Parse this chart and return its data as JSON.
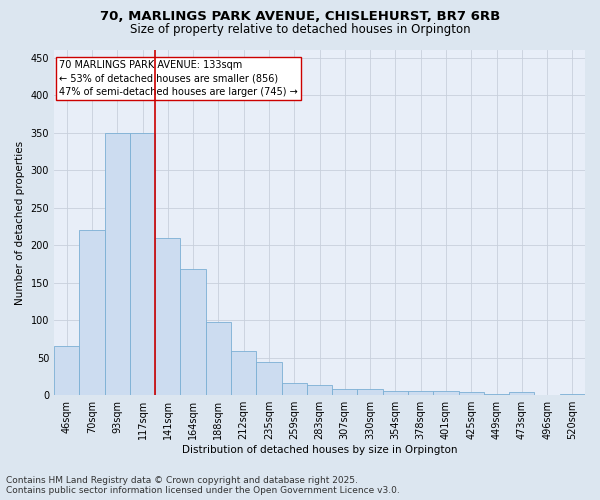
{
  "title_line1": "70, MARLINGS PARK AVENUE, CHISLEHURST, BR7 6RB",
  "title_line2": "Size of property relative to detached houses in Orpington",
  "xlabel": "Distribution of detached houses by size in Orpington",
  "ylabel": "Number of detached properties",
  "categories": [
    "46sqm",
    "70sqm",
    "93sqm",
    "117sqm",
    "141sqm",
    "164sqm",
    "188sqm",
    "212sqm",
    "235sqm",
    "259sqm",
    "283sqm",
    "307sqm",
    "330sqm",
    "354sqm",
    "378sqm",
    "401sqm",
    "425sqm",
    "449sqm",
    "473sqm",
    "496sqm",
    "520sqm"
  ],
  "values": [
    65,
    220,
    350,
    350,
    210,
    168,
    97,
    59,
    44,
    16,
    14,
    8,
    8,
    6,
    6,
    5,
    4,
    1,
    4,
    0,
    1
  ],
  "bar_color": "#ccdcf0",
  "bar_edge_color": "#7bafd4",
  "vline_x_index": 4,
  "vline_color": "#cc0000",
  "annotation_text": "70 MARLINGS PARK AVENUE: 133sqm\n← 53% of detached houses are smaller (856)\n47% of semi-detached houses are larger (745) →",
  "annotation_box_color": "#ffffff",
  "annotation_box_edge": "#cc0000",
  "ylim": [
    0,
    460
  ],
  "yticks": [
    0,
    50,
    100,
    150,
    200,
    250,
    300,
    350,
    400,
    450
  ],
  "grid_color": "#c8d0dc",
  "bg_color": "#dce6f0",
  "plot_bg_color": "#e8eef8",
  "footer_line1": "Contains HM Land Registry data © Crown copyright and database right 2025.",
  "footer_line2": "Contains public sector information licensed under the Open Government Licence v3.0.",
  "title_fontsize": 9.5,
  "subtitle_fontsize": 8.5,
  "axis_label_fontsize": 7.5,
  "tick_fontsize": 7,
  "annotation_fontsize": 7,
  "footer_fontsize": 6.5
}
